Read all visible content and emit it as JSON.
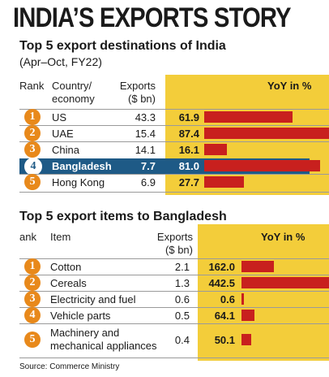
{
  "title": "INDIA’S EXPORTS STORY",
  "colors": {
    "yoy_background": "#f3cd3a",
    "bar": "#c8201e",
    "rank_badge": "#e8891b",
    "highlight_row": "#1e5a86"
  },
  "chart_data": [
    {
      "type": "table",
      "title": "Top 5 export destinations of India",
      "subtitle": "(Apr–Oct, FY22)",
      "headers": {
        "rank": "Rank",
        "country_line1": "Country/",
        "country_line2": "economy",
        "exports_line1": "Exports",
        "exports_line2": "($ bn)",
        "yoy": "YoY in %"
      },
      "categories": [
        "US",
        "UAE",
        "China",
        "Bangladesh",
        "Hong Kong"
      ],
      "ranks": [
        "1",
        "2",
        "3",
        "4",
        "5"
      ],
      "series": [
        {
          "name": "Exports ($ bn)",
          "values": [
            "43.3",
            "15.4",
            "14.1",
            "7.7",
            "6.9"
          ]
        },
        {
          "name": "YoY in %",
          "values": [
            "61.9",
            "87.4",
            "16.1",
            "81.0",
            "27.7"
          ]
        }
      ],
      "highlighted": "Bangladesh"
    },
    {
      "type": "table",
      "title": "Top 5 export items to Bangladesh",
      "headers": {
        "rank": "ank",
        "item": "Item",
        "exports_line1": "Exports",
        "exports_line2": "($ bn)",
        "yoy": "YoY in %"
      },
      "categories": [
        "Cotton",
        "Cereals",
        "Electricity and fuel",
        "Vehicle parts",
        "Machinery and|mechanical appliances"
      ],
      "ranks": [
        "1",
        "2",
        "3",
        "4",
        "5"
      ],
      "series": [
        {
          "name": "Exports ($ bn)",
          "values": [
            "2.1",
            "1.3",
            "0.6",
            "0.5",
            "0.4"
          ]
        },
        {
          "name": "YoY in %",
          "values": [
            "162.0",
            "442.5",
            "0.6",
            "64.1",
            "50.1"
          ]
        }
      ]
    }
  ],
  "source": "Source: Commerce Ministry"
}
